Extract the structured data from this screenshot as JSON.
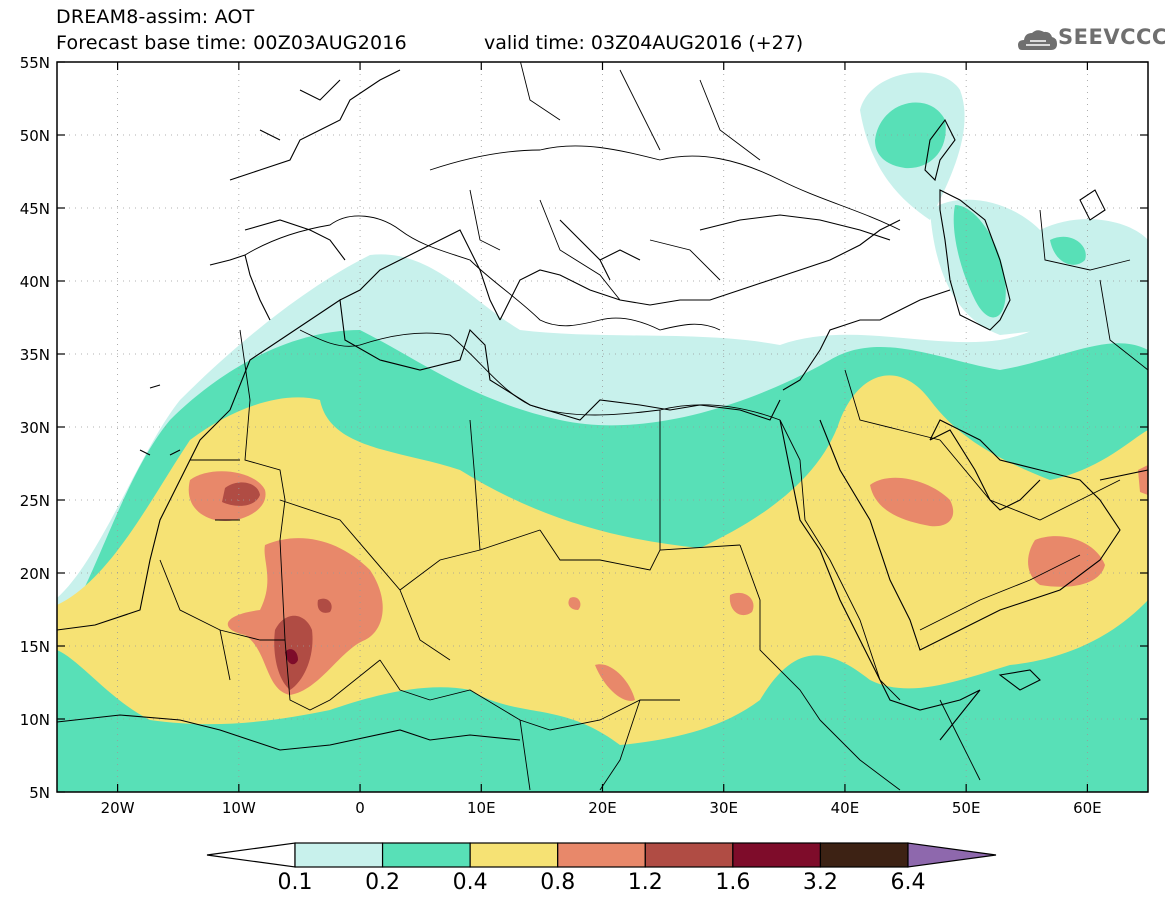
{
  "title": {
    "line1": "DREAM8-assim: AOT",
    "base_time": "Forecast base time: 00Z03AUG2016",
    "valid_time": "valid time: 03Z04AUG2016 (+27)"
  },
  "logo": {
    "text": "SEEVCCC",
    "icon": "cloud-icon"
  },
  "map": {
    "lon_range": [
      -25,
      65
    ],
    "lat_range": [
      5,
      55
    ],
    "lat_labels": [
      "55N",
      "50N",
      "45N",
      "40N",
      "35N",
      "30N",
      "25N",
      "20N",
      "15N",
      "10N",
      "5N"
    ],
    "lat_values": [
      55,
      50,
      45,
      40,
      35,
      30,
      25,
      20,
      15,
      10,
      5
    ],
    "lon_labels": [
      "20W",
      "10W",
      "0",
      "10E",
      "20E",
      "30E",
      "40E",
      "50E",
      "60E"
    ],
    "lon_values": [
      -20,
      -10,
      0,
      10,
      20,
      30,
      40,
      50,
      60
    ]
  },
  "colorbar": {
    "levels": [
      "0.1",
      "0.2",
      "0.4",
      "0.8",
      "1.2",
      "1.6",
      "3.2",
      "6.4"
    ],
    "colors": [
      "#c8f1ec",
      "#58e0b7",
      "#f6e274",
      "#e8886a",
      "#b04c44",
      "#7e0c2a",
      "#3d2214",
      "#8e68ad"
    ],
    "under_color": "#ffffff"
  }
}
